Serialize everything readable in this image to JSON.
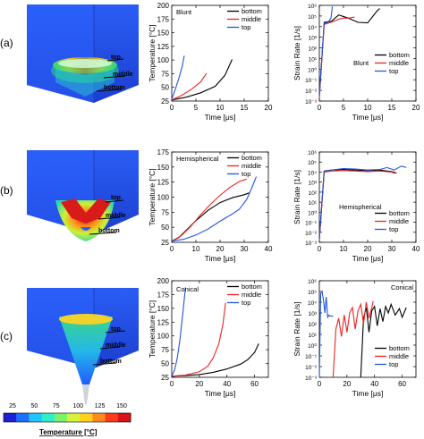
{
  "panel_labels": [
    "(a)",
    "(b)",
    "(c)"
  ],
  "sim_labels": {
    "top": "top",
    "middle": "middle",
    "bottom": "bottom"
  },
  "colorbar": {
    "title": "Temperature [°C]",
    "ticks": [
      "25",
      "50",
      "75",
      "100",
      "125",
      "150"
    ],
    "colors": [
      "#1f1fd6",
      "#1f6fff",
      "#25c3ff",
      "#2df0c8",
      "#7cf26a",
      "#d7f23a",
      "#ffd21f",
      "#ff8c1a",
      "#ff3a1a",
      "#d8141a"
    ]
  },
  "series_colors": {
    "bottom": "#000000",
    "middle": "#ee2222",
    "top": "#2255dd"
  },
  "chart_data": [
    {
      "type": "line",
      "title": "Blunt",
      "xlabel": "Time [μs]",
      "ylabel": "Temperature [°C]",
      "xlim": [
        0,
        20
      ],
      "ylim": [
        25,
        200
      ],
      "xticks": [
        0,
        5,
        10,
        15,
        20
      ],
      "yticks": [
        25,
        50,
        75,
        100,
        125,
        150,
        175,
        200
      ],
      "xtick_labels": [
        "0",
        "5",
        "10",
        "15",
        "20"
      ],
      "ytick_labels": [
        "25",
        "50",
        "75",
        "100",
        "125",
        "150",
        "175",
        "200"
      ],
      "legend": "top-right",
      "series": [
        {
          "name": "bottom",
          "x": [
            0,
            3,
            6,
            9,
            11,
            12.5
          ],
          "y": [
            27,
            32,
            40,
            52,
            72,
            101
          ]
        },
        {
          "name": "middle",
          "x": [
            0,
            2,
            4,
            6,
            7.2
          ],
          "y": [
            27,
            35,
            46,
            60,
            76
          ]
        },
        {
          "name": "top",
          "x": [
            0,
            0.8,
            1.6,
            2.2,
            2.6
          ],
          "y": [
            28,
            48,
            70,
            90,
            108
          ]
        }
      ]
    },
    {
      "type": "line",
      "title": "Blunt",
      "xlabel": "Time [μs]",
      "ylabel": "Strain Rate [1/s]",
      "xlim": [
        0,
        20
      ],
      "ylim": [
        -3,
        6
      ],
      "yscale": "log",
      "xticks": [
        0,
        5,
        10,
        15,
        20
      ],
      "yticks": [
        -3,
        -2,
        -1,
        0,
        1,
        2,
        3,
        4,
        5,
        6
      ],
      "xtick_labels": [
        "0",
        "5",
        "10",
        "15",
        "20"
      ],
      "ytick_labels": [
        "10⁻³",
        "10⁻²",
        "10⁻¹",
        "10⁰",
        "10¹",
        "10²",
        "10³",
        "10⁴",
        "10⁵",
        "10⁶"
      ],
      "legend": "middle-right",
      "series": [
        {
          "name": "bottom",
          "x": [
            0,
            1,
            2.5,
            4,
            6,
            8,
            10,
            12,
            12.5
          ],
          "y": [
            -2.6,
            4.4,
            4.5,
            5.1,
            4.8,
            4.4,
            4.35,
            5.5,
            5.7
          ]
        },
        {
          "name": "middle",
          "x": [
            0,
            1,
            2,
            3,
            4,
            5,
            6,
            7.3
          ],
          "y": [
            -2.7,
            4.2,
            4.35,
            4.5,
            4.7,
            4.8,
            4.8,
            4.9
          ]
        },
        {
          "name": "top",
          "x": [
            0,
            1,
            1.8,
            2.4,
            2.7
          ],
          "y": [
            -2.5,
            4.3,
            4.4,
            4.8,
            5.9
          ]
        }
      ]
    },
    {
      "type": "line",
      "title": "Hemispherical",
      "xlabel": "Time [μs]",
      "ylabel": "Temperature [°C]",
      "xlim": [
        0,
        40
      ],
      "ylim": [
        25,
        175
      ],
      "xticks": [
        0,
        10,
        20,
        30,
        40
      ],
      "yticks": [
        25,
        50,
        75,
        100,
        125,
        150,
        175
      ],
      "xtick_labels": [
        "0",
        "10",
        "20",
        "30",
        "40"
      ],
      "ytick_labels": [
        "25",
        "50",
        "75",
        "100",
        "125",
        "150",
        "175"
      ],
      "legend": "top-right",
      "series": [
        {
          "name": "bottom",
          "x": [
            0,
            3,
            6,
            10,
            15,
            20,
            25,
            30,
            32
          ],
          "y": [
            27,
            33,
            45,
            61,
            78,
            91,
            99,
            104,
            107
          ]
        },
        {
          "name": "middle",
          "x": [
            0,
            4,
            8,
            12,
            16,
            20,
            24,
            28,
            31
          ],
          "y": [
            27,
            36,
            52,
            71,
            88,
            103,
            116,
            126,
            130
          ]
        },
        {
          "name": "top",
          "x": [
            0,
            5,
            10,
            15,
            20,
            25,
            28,
            31,
            33,
            35
          ],
          "y": [
            27,
            30,
            37,
            47,
            60,
            72,
            80,
            96,
            114,
            134
          ]
        }
      ]
    },
    {
      "type": "line",
      "title": "Hemispherical",
      "xlabel": "Time [μs]",
      "ylabel": "Strain Rate [1/s]",
      "xlim": [
        0,
        40
      ],
      "ylim": [
        -3,
        6
      ],
      "yscale": "log",
      "xticks": [
        0,
        10,
        20,
        30,
        40
      ],
      "yticks": [
        -3,
        -2,
        -1,
        0,
        1,
        2,
        3,
        4,
        5,
        6
      ],
      "xtick_labels": [
        "0",
        "10",
        "20",
        "30",
        "40"
      ],
      "ytick_labels": [
        "10⁻³",
        "10⁻²",
        "10⁻¹",
        "10⁰",
        "10¹",
        "10²",
        "10³",
        "10⁴",
        "10⁵",
        "10⁶"
      ],
      "legend": "bottom-right",
      "series": [
        {
          "name": "bottom",
          "x": [
            0,
            2,
            5,
            10,
            15,
            20,
            25,
            30,
            32
          ],
          "y": [
            -2.7,
            4.1,
            4.2,
            4.25,
            4.2,
            4.15,
            4.2,
            4.05,
            3.9
          ]
        },
        {
          "name": "middle",
          "x": [
            0,
            2,
            5,
            10,
            15,
            20,
            25,
            30,
            31
          ],
          "y": [
            -2.8,
            4.0,
            4.1,
            4.15,
            4.1,
            4.05,
            4.1,
            4.0,
            3.85
          ]
        },
        {
          "name": "top",
          "x": [
            0,
            2,
            5,
            10,
            15,
            20,
            25,
            28,
            31,
            34,
            36
          ],
          "y": [
            -2.6,
            4.05,
            4.2,
            4.35,
            4.3,
            4.2,
            4.25,
            4.45,
            4.2,
            4.6,
            4.45
          ]
        }
      ]
    },
    {
      "type": "line",
      "title": "Conical",
      "xlabel": "Time [μs]",
      "ylabel": "Temperature [°C]",
      "xlim": [
        0,
        70
      ],
      "ylim": [
        25,
        200
      ],
      "xticks": [
        0,
        20,
        40,
        60
      ],
      "yticks": [
        25,
        50,
        75,
        100,
        125,
        150,
        175,
        200
      ],
      "xtick_labels": [
        "0",
        "20",
        "40",
        "60"
      ],
      "ytick_labels": [
        "25",
        "50",
        "75",
        "100",
        "125",
        "150",
        "175",
        "200"
      ],
      "legend": "top-right",
      "series": [
        {
          "name": "bottom",
          "x": [
            0,
            10,
            20,
            30,
            40,
            50,
            55,
            60,
            63
          ],
          "y": [
            27,
            28,
            30,
            34,
            40,
            49,
            57,
            70,
            86
          ]
        },
        {
          "name": "middle",
          "x": [
            0,
            10,
            20,
            26,
            30,
            34,
            37,
            39
          ],
          "y": [
            27,
            29,
            35,
            45,
            60,
            85,
            120,
            160
          ]
        },
        {
          "name": "top",
          "x": [
            0,
            2,
            4,
            6,
            8,
            10
          ],
          "y": [
            27,
            38,
            60,
            95,
            140,
            188
          ]
        }
      ]
    },
    {
      "type": "line",
      "title": "Conical",
      "xlabel": "Time [μs]",
      "ylabel": "Strain Rate [1/s]",
      "xlim": [
        0,
        70
      ],
      "ylim": [
        -3,
        6
      ],
      "yscale": "log",
      "xticks": [
        0,
        20,
        40,
        60
      ],
      "yticks": [
        -3,
        -2,
        -1,
        0,
        1,
        2,
        3,
        4,
        5,
        6
      ],
      "xtick_labels": [
        "0",
        "20",
        "40",
        "60"
      ],
      "ytick_labels": [
        "10⁻³",
        "10⁻²",
        "10⁻¹",
        "10⁰",
        "10¹",
        "10²",
        "10³",
        "10⁴",
        "10⁵",
        "10⁶"
      ],
      "legend": "bottom-right",
      "series": [
        {
          "name": "bottom",
          "x": [
            30,
            32,
            34,
            36,
            38,
            40,
            42,
            44,
            46,
            48,
            50,
            52,
            55,
            58,
            60,
            63
          ],
          "y": [
            -3,
            2.5,
            3.5,
            1.2,
            3.2,
            3.6,
            1.8,
            3.4,
            2.2,
            3.6,
            3.0,
            3.8,
            2.8,
            3.4,
            2.6,
            3.5
          ]
        },
        {
          "name": "middle",
          "x": [
            10,
            12,
            14,
            16,
            18,
            20,
            22,
            24,
            26,
            28,
            30,
            32,
            34,
            36,
            38,
            39
          ],
          "y": [
            -3,
            1.5,
            2.5,
            0.8,
            2.8,
            1.2,
            3.0,
            3.5,
            1.5,
            3.2,
            3.8,
            2.0,
            4.0,
            2.5,
            3.5,
            4.1
          ]
        },
        {
          "name": "top",
          "x": [
            0,
            1,
            2,
            3,
            4,
            5,
            6,
            7,
            8,
            9,
            10
          ],
          "y": [
            -3,
            4.8,
            5.0,
            4.2,
            3.0,
            4.5,
            2.6,
            2.8,
            2.7,
            2.7,
            2.7
          ]
        }
      ]
    }
  ]
}
